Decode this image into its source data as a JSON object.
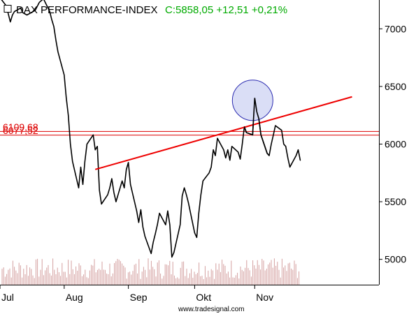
{
  "header": {
    "title": "DAX PERFORMANCE-INDEX",
    "quote": "C:5858,05 +12,51 +0,21%",
    "title_color": "#000000",
    "quote_color": "#00aa00",
    "collapse_icon": "square-box-icon"
  },
  "credit": "www.tradesignal.com",
  "chart_data": {
    "type": "line",
    "title": "DAX PERFORMANCE-INDEX",
    "ylim": [
      4780,
      7250
    ],
    "y_ticks": [
      {
        "value": 5000,
        "label": "5000"
      },
      {
        "value": 5500,
        "label": "5500"
      },
      {
        "value": 6000,
        "label": "6000"
      },
      {
        "value": 6500,
        "label": "6500"
      },
      {
        "value": 7000,
        "label": "7000"
      }
    ],
    "xlim": [
      "2011-07-01",
      "2011-12-31"
    ],
    "x_ticks": [
      {
        "date": "2011-07-01",
        "label": "Jul"
      },
      {
        "date": "2011-08-01",
        "label": "Aug"
      },
      {
        "date": "2011-09-01",
        "label": "Sep"
      },
      {
        "date": "2011-10-03",
        "label": "Okt"
      },
      {
        "date": "2011-11-01",
        "label": "Nov"
      }
    ],
    "grid": false,
    "legend": "none",
    "series": [
      {
        "color": "#000000",
        "points": [
          [
            "2011-07-01",
            7270
          ],
          [
            "2011-07-04",
            7200
          ],
          [
            "2011-07-06",
            7060
          ],
          [
            "2011-07-07",
            7120
          ],
          [
            "2011-07-08",
            7150
          ],
          [
            "2011-07-11",
            7180
          ],
          [
            "2011-07-12",
            7140
          ],
          [
            "2011-07-14",
            7120
          ],
          [
            "2011-07-18",
            7160
          ],
          [
            "2011-07-20",
            7230
          ],
          [
            "2011-07-22",
            7260
          ],
          [
            "2011-07-25",
            7150
          ],
          [
            "2011-07-26",
            7080
          ],
          [
            "2011-07-27",
            7020
          ],
          [
            "2011-07-28",
            6900
          ],
          [
            "2011-07-29",
            6800
          ],
          [
            "2011-08-01",
            6600
          ],
          [
            "2011-08-02",
            6400
          ],
          [
            "2011-08-03",
            6250
          ],
          [
            "2011-08-04",
            6000
          ],
          [
            "2011-08-05",
            5850
          ],
          [
            "2011-08-08",
            5620
          ],
          [
            "2011-08-09",
            5800
          ],
          [
            "2011-08-10",
            5650
          ],
          [
            "2011-08-11",
            5850
          ],
          [
            "2011-08-12",
            6000
          ],
          [
            "2011-08-15",
            6080
          ],
          [
            "2011-08-16",
            5950
          ],
          [
            "2011-08-17",
            5980
          ],
          [
            "2011-08-18",
            5600
          ],
          [
            "2011-08-19",
            5480
          ],
          [
            "2011-08-22",
            5560
          ],
          [
            "2011-08-23",
            5620
          ],
          [
            "2011-08-24",
            5700
          ],
          [
            "2011-08-25",
            5580
          ],
          [
            "2011-08-26",
            5500
          ],
          [
            "2011-08-29",
            5680
          ],
          [
            "2011-08-30",
            5620
          ],
          [
            "2011-08-31",
            5780
          ],
          [
            "2011-09-01",
            5840
          ],
          [
            "2011-09-02",
            5650
          ],
          [
            "2011-09-05",
            5420
          ],
          [
            "2011-09-06",
            5320
          ],
          [
            "2011-09-07",
            5430
          ],
          [
            "2011-09-08",
            5280
          ],
          [
            "2011-09-09",
            5200
          ],
          [
            "2011-09-12",
            5050
          ],
          [
            "2011-09-13",
            5150
          ],
          [
            "2011-09-14",
            5220
          ],
          [
            "2011-09-15",
            5300
          ],
          [
            "2011-09-16",
            5400
          ],
          [
            "2011-09-19",
            5300
          ],
          [
            "2011-09-20",
            5420
          ],
          [
            "2011-09-21",
            5300
          ],
          [
            "2011-09-22",
            5020
          ],
          [
            "2011-09-23",
            5060
          ],
          [
            "2011-09-26",
            5300
          ],
          [
            "2011-09-27",
            5550
          ],
          [
            "2011-09-28",
            5620
          ],
          [
            "2011-09-29",
            5560
          ],
          [
            "2011-09-30",
            5490
          ],
          [
            "2011-10-03",
            5230
          ],
          [
            "2011-10-04",
            5190
          ],
          [
            "2011-10-05",
            5400
          ],
          [
            "2011-10-06",
            5560
          ],
          [
            "2011-10-07",
            5680
          ],
          [
            "2011-10-10",
            5750
          ],
          [
            "2011-10-11",
            5800
          ],
          [
            "2011-10-12",
            5950
          ],
          [
            "2011-10-13",
            5900
          ],
          [
            "2011-10-14",
            6050
          ],
          [
            "2011-10-17",
            5950
          ],
          [
            "2011-10-18",
            5880
          ],
          [
            "2011-10-19",
            5950
          ],
          [
            "2011-10-20",
            5860
          ],
          [
            "2011-10-21",
            5980
          ],
          [
            "2011-10-24",
            5930
          ],
          [
            "2011-10-25",
            5870
          ],
          [
            "2011-10-26",
            6000
          ],
          [
            "2011-10-27",
            6150
          ],
          [
            "2011-10-28",
            6100
          ],
          [
            "2011-10-31",
            6080
          ],
          [
            "2011-11-01",
            6400
          ],
          [
            "2011-11-02",
            6280
          ],
          [
            "2011-11-03",
            6220
          ],
          [
            "2011-11-04",
            6080
          ],
          [
            "2011-11-07",
            5920
          ],
          [
            "2011-11-08",
            5900
          ],
          [
            "2011-11-09",
            6000
          ],
          [
            "2011-11-10",
            6080
          ],
          [
            "2011-11-11",
            6160
          ],
          [
            "2011-11-14",
            6120
          ],
          [
            "2011-11-15",
            6000
          ],
          [
            "2011-11-16",
            5980
          ],
          [
            "2011-11-17",
            5880
          ],
          [
            "2011-11-18",
            5800
          ],
          [
            "2011-11-21",
            5900
          ],
          [
            "2011-11-22",
            5950
          ],
          [
            "2011-11-23",
            5858
          ]
        ]
      }
    ],
    "horizontal_lines": [
      {
        "value": 6109.68,
        "label": "6109,68",
        "color": "#dd0000"
      },
      {
        "value": 6077.52,
        "label": "6077,52",
        "color": "#dd0000"
      }
    ],
    "trendline": {
      "from": [
        "2011-08-16",
        5780
      ],
      "to": [
        "2011-12-18",
        6410
      ],
      "color": "#ee0000"
    },
    "highlight_circle": {
      "center": [
        "2011-10-31",
        6380
      ],
      "fill": "#d4d8f4",
      "stroke": "#2a2ab0"
    },
    "volume_bars_color": "#d4a0a0"
  }
}
